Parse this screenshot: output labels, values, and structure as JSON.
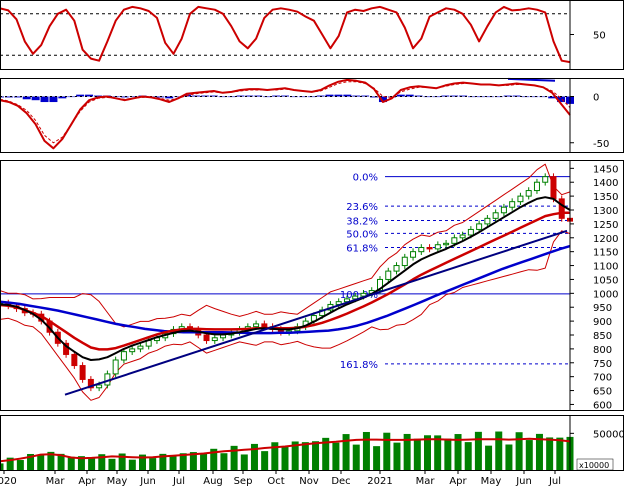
{
  "chart_data": [
    {
      "type": "line",
      "panel": "oscillator-upper",
      "y_ticks": [
        50
      ],
      "ylim": [
        0,
        100
      ],
      "series": [
        {
          "values": [
            88,
            85,
            72,
            40,
            22,
            35,
            62,
            80,
            86,
            70,
            28,
            15,
            12,
            40,
            70,
            86,
            90,
            88,
            84,
            74,
            38,
            22,
            44,
            80,
            90,
            88,
            86,
            80,
            62,
            40,
            30,
            44,
            74,
            86,
            88,
            86,
            83,
            76,
            70,
            50,
            30,
            48,
            82,
            86,
            84,
            88,
            90,
            86,
            82,
            60,
            30,
            44,
            76,
            82,
            88,
            86,
            80,
            64,
            40,
            62,
            82,
            90,
            85,
            86,
            88,
            86,
            82,
            40,
            12,
            10
          ],
          "color": "#cc0000"
        }
      ],
      "reference_lines": [
        80,
        20
      ],
      "grid": false
    },
    {
      "type": "line",
      "panel": "oscillator-macd",
      "y_ticks": [
        0,
        -50
      ],
      "ylim": [
        -60,
        20
      ],
      "series": [
        {
          "values": [
            -4,
            -6,
            -10,
            -18,
            -30,
            -48,
            -56,
            -46,
            -30,
            -14,
            -4,
            -1,
            0,
            -2,
            -4,
            -2,
            0,
            -1,
            -3,
            -6,
            -2,
            3,
            4,
            5,
            6,
            4,
            5,
            7,
            8,
            8,
            7,
            8,
            9,
            7,
            6,
            5,
            7,
            12,
            16,
            18,
            17,
            15,
            8,
            -6,
            -2,
            7,
            10,
            11,
            10,
            9,
            12,
            14,
            15,
            14,
            13,
            13,
            12,
            13,
            14,
            13,
            12,
            10,
            4,
            -8,
            -20
          ],
          "color": "#cc0000"
        },
        {
          "values": [
            -3,
            -5,
            -9,
            -15,
            -26,
            -42,
            -50,
            -44,
            -30,
            -16,
            -6,
            -2,
            -1,
            -2,
            -3,
            -2,
            -1,
            -1,
            -2,
            -4,
            -2,
            1,
            3,
            4,
            5,
            4,
            5,
            6,
            7,
            7,
            7,
            7,
            8,
            7,
            6,
            5,
            6,
            10,
            14,
            16,
            16,
            14,
            9,
            0,
            -1,
            5,
            8,
            10,
            10,
            9,
            11,
            13,
            14,
            14,
            13,
            13,
            12,
            12,
            13,
            13,
            12,
            10,
            6,
            -2,
            -12
          ],
          "color": "#cc0000",
          "dashed": true
        },
        {
          "values": [
            -1,
            -1,
            -1,
            -3,
            -4,
            -6,
            -6,
            -2,
            0,
            2,
            2,
            1,
            1,
            0,
            -1,
            0,
            1,
            0,
            -1,
            -2,
            0,
            2,
            1,
            1,
            1,
            0,
            0,
            1,
            1,
            1,
            0,
            1,
            1,
            0,
            0,
            0,
            1,
            2,
            2,
            2,
            1,
            1,
            -1,
            -6,
            -1,
            2,
            2,
            1,
            0,
            0,
            1,
            1,
            1,
            0,
            0,
            0,
            0,
            1,
            1,
            0,
            0,
            0,
            -2,
            -6,
            -8
          ],
          "color": "#0000cc",
          "type": "histogram"
        }
      ],
      "trendline": [
        19,
        17
      ],
      "grid": false
    },
    {
      "type": "line",
      "panel": "price",
      "x_tick_labels": [
        "2020",
        "Mar",
        "Apr",
        "May",
        "Jun",
        "Jul",
        "Aug",
        "Sep",
        "Oct",
        "Nov",
        "Dec",
        "2021",
        "Mar",
        "Apr",
        "May",
        "Jun",
        "Jul"
      ],
      "y_ticks": [
        600,
        650,
        700,
        750,
        800,
        850,
        900,
        950,
        1000,
        1050,
        1100,
        1150,
        1200,
        1250,
        1300,
        1350,
        1400,
        1450
      ],
      "ylim": [
        580,
        1480
      ],
      "price": [
        965,
        955,
        945,
        930,
        925,
        900,
        860,
        820,
        780,
        740,
        690,
        660,
        670,
        710,
        760,
        790,
        800,
        810,
        830,
        840,
        855,
        870,
        880,
        870,
        850,
        830,
        840,
        850,
        860,
        870,
        880,
        890,
        880,
        870,
        860,
        865,
        880,
        900,
        920,
        940,
        960,
        970,
        980,
        990,
        1000,
        1010,
        1050,
        1080,
        1100,
        1130,
        1150,
        1165,
        1160,
        1175,
        1180,
        1200,
        1210,
        1230,
        1250,
        1270,
        1290,
        1310,
        1330,
        1350,
        1370,
        1400,
        1420,
        1340,
        1270,
        1260
      ],
      "series": [
        {
          "values": [
            958,
            955,
            950,
            940,
            930,
            918,
            900,
            880,
            860,
            840,
            822,
            805,
            798,
            798,
            803,
            812,
            822,
            832,
            842,
            852,
            860,
            866,
            870,
            872,
            872,
            871,
            870,
            870,
            870,
            871,
            872,
            874,
            875,
            875,
            874,
            874,
            876,
            880,
            886,
            894,
            904,
            915,
            927,
            940,
            953,
            967,
            982,
            998,
            1015,
            1032,
            1050,
            1067,
            1082,
            1096,
            1110,
            1124,
            1138,
            1152,
            1166,
            1180,
            1194,
            1208,
            1222,
            1236,
            1250,
            1264,
            1278,
            1285,
            1290,
            1290
          ],
          "color": "#cc0000"
        },
        {
          "values": [
            960,
            958,
            952,
            940,
            926,
            905,
            875,
            840,
            810,
            790,
            770,
            760,
            762,
            770,
            785,
            800,
            812,
            822,
            832,
            842,
            850,
            858,
            864,
            866,
            862,
            856,
            852,
            852,
            855,
            860,
            866,
            872,
            874,
            872,
            870,
            870,
            874,
            884,
            898,
            914,
            930,
            946,
            960,
            972,
            984,
            998,
            1016,
            1038,
            1060,
            1082,
            1104,
            1122,
            1136,
            1148,
            1160,
            1174,
            1188,
            1204,
            1220,
            1238,
            1256,
            1274,
            1292,
            1310,
            1326,
            1340,
            1346,
            1340,
            1318,
            1300
          ],
          "color": "#000000"
        },
        {
          "values": [
            970,
            966,
            962,
            956,
            950,
            944,
            938,
            930,
            922,
            914,
            906,
            898,
            890,
            884,
            878,
            872,
            868,
            864,
            862,
            860,
            860,
            860,
            860,
            860,
            859,
            858,
            857,
            857,
            857,
            858,
            858,
            860,
            862,
            864,
            866,
            870,
            876,
            884,
            894,
            906,
            918,
            932,
            946,
            960,
            975,
            990,
            1004,
            1018,
            1032,
            1046,
            1060,
            1074,
            1088,
            1100,
            1112,
            1124,
            1136,
            1148,
            1160,
            1170
          ],
          "color": "#0000cc"
        }
      ],
      "trendline": [
        635,
        1225
      ],
      "fibonacci": [
        {
          "label": "0.0%",
          "value": 1420
        },
        {
          "label": "23.6%",
          "value": 1314
        },
        {
          "label": "38.2%",
          "value": 1262
        },
        {
          "label": "50.0%",
          "value": 1216
        },
        {
          "label": "61.8%",
          "value": 1165
        },
        {
          "label": "100.0%",
          "value": 998
        },
        {
          "label": "161.8%",
          "value": 746
        }
      ],
      "grid": false
    },
    {
      "type": "bar",
      "panel": "volume",
      "y_ticks": [
        50000
      ],
      "unit_label": "x10000",
      "volume_ma": [
        12000,
        13500,
        15500,
        18000,
        21000,
        21500,
        20000,
        17000,
        16000,
        16500,
        17500,
        18500,
        18000,
        17500,
        17000,
        17500,
        18500,
        19500,
        20500,
        21500,
        22500,
        24000,
        25500,
        26500,
        27500,
        28500,
        30000,
        31000,
        32000,
        33500,
        35000,
        36500,
        37500,
        38500,
        40000,
        41000,
        41500,
        41500,
        41000,
        41000,
        41000,
        41500,
        42000,
        42000,
        41500,
        41000,
        41500,
        42000,
        42000,
        42000,
        41500,
        42000,
        42500,
        42000,
        41500,
        40500,
        39000
      ],
      "grid": false
    }
  ]
}
